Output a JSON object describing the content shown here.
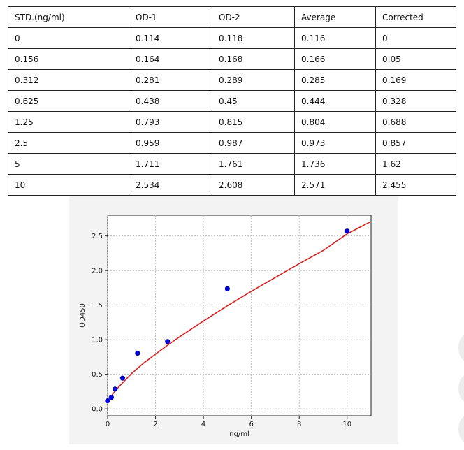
{
  "table": {
    "headers": [
      "STD.(ng/ml)",
      "OD-1",
      "OD-2",
      "Average",
      "Corrected"
    ],
    "rows": [
      [
        "0",
        "0.114",
        "0.118",
        "0.116",
        "0"
      ],
      [
        "0.156",
        "0.164",
        "0.168",
        "0.166",
        "0.05"
      ],
      [
        "0.312",
        "0.281",
        "0.289",
        "0.285",
        "0.169"
      ],
      [
        "0.625",
        "0.438",
        "0.45",
        "0.444",
        "0.328"
      ],
      [
        "1.25",
        "0.793",
        "0.815",
        "0.804",
        "0.688"
      ],
      [
        "2.5",
        "0.959",
        "0.987",
        "0.973",
        "0.857"
      ],
      [
        "5",
        "1.711",
        "1.761",
        "1.736",
        "1.62"
      ],
      [
        "10",
        "2.534",
        "2.608",
        "2.571",
        "2.455"
      ]
    ]
  },
  "chart_data": {
    "type": "scatter",
    "title": "",
    "xlabel": "ng/ml",
    "ylabel": "OD450",
    "xlim": [
      0,
      11
    ],
    "ylim": [
      -0.1,
      2.8
    ],
    "xticks": [
      0,
      2,
      4,
      6,
      8,
      10
    ],
    "yticks": [
      0.0,
      0.5,
      1.0,
      1.5,
      2.0,
      2.5
    ],
    "xtick_labels": [
      "0",
      "2",
      "4",
      "6",
      "8",
      "10"
    ],
    "ytick_labels": [
      "0.0",
      "0.5",
      "1.0",
      "1.5",
      "2.0",
      "2.5"
    ],
    "grid": true,
    "points": {
      "x": [
        0,
        0.156,
        0.312,
        0.625,
        1.25,
        2.5,
        5,
        10
      ],
      "y": [
        0.116,
        0.166,
        0.285,
        0.444,
        0.804,
        0.973,
        1.736,
        2.571
      ],
      "color": "#0000cc"
    },
    "fit_curve": {
      "x": [
        0,
        0.1,
        0.25,
        0.5,
        0.75,
        1,
        1.5,
        2,
        2.5,
        3,
        4,
        5,
        6,
        7,
        8,
        9,
        10,
        11
      ],
      "y": [
        0.11,
        0.16,
        0.23,
        0.33,
        0.42,
        0.51,
        0.66,
        0.79,
        0.92,
        1.04,
        1.27,
        1.49,
        1.7,
        1.9,
        2.1,
        2.29,
        2.53,
        2.71
      ],
      "color": "#d62020"
    }
  }
}
